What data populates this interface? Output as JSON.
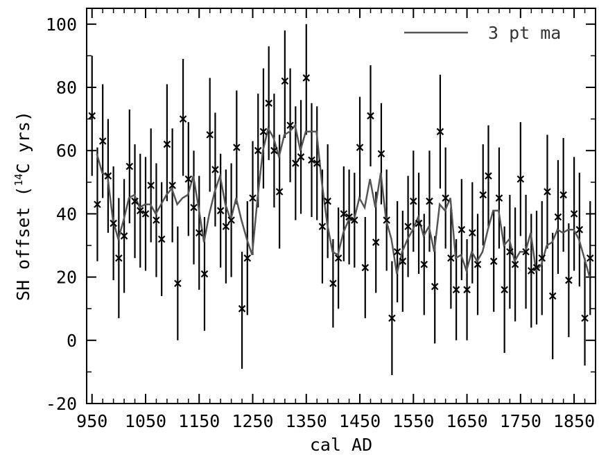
{
  "chart_data": {
    "type": "scatter",
    "xlabel": "cal AD",
    "ylabel_main": "SH offset (",
    "ylabel_sup": "14",
    "ylabel_tail": "C yrs)",
    "xlim": [
      940,
      1890
    ],
    "ylim": [
      -20,
      105
    ],
    "x_ticks": [
      "950",
      "1050",
      "1150",
      "1250",
      "1350",
      "1450",
      "1550",
      "1650",
      "1750",
      "1850"
    ],
    "x_tick_values": [
      950,
      1050,
      1150,
      1250,
      1350,
      1450,
      1550,
      1650,
      1750,
      1850
    ],
    "y_ticks": [
      "-20",
      "0",
      "20",
      "40",
      "60",
      "80",
      "100"
    ],
    "y_tick_values": [
      -20,
      0,
      20,
      40,
      60,
      80,
      100
    ],
    "grid": false,
    "legend_position": "top-right",
    "colors": {
      "points": "#000000",
      "ma_line": "#555555",
      "axes": "#000000"
    },
    "series": [
      {
        "name": "3 pt ma",
        "kind": "line",
        "x": [
          959,
          969,
          979,
          989,
          999,
          1009,
          1019,
          1029,
          1039,
          1049,
          1059,
          1069,
          1079,
          1089,
          1099,
          1109,
          1119,
          1129,
          1139,
          1149,
          1159,
          1169,
          1179,
          1189,
          1199,
          1209,
          1219,
          1229,
          1239,
          1249,
          1259,
          1269,
          1279,
          1289,
          1299,
          1309,
          1319,
          1329,
          1339,
          1349,
          1359,
          1369,
          1379,
          1389,
          1399,
          1409,
          1419,
          1429,
          1439,
          1449,
          1459,
          1469,
          1479,
          1489,
          1499,
          1509,
          1519,
          1529,
          1539,
          1549,
          1559,
          1569,
          1579,
          1589,
          1599,
          1609,
          1619,
          1629,
          1639,
          1649,
          1659,
          1669,
          1679,
          1689,
          1699,
          1709,
          1719,
          1729,
          1739,
          1749,
          1759,
          1769,
          1779,
          1789,
          1799,
          1809,
          1819,
          1829,
          1839,
          1849,
          1859,
          1869,
          1879
        ],
        "values": [
          59,
          53,
          52,
          38,
          32,
          38,
          45,
          46,
          42,
          43,
          43,
          40,
          43,
          46,
          48,
          43,
          45,
          46,
          52,
          42,
          31,
          40,
          47,
          52,
          43,
          38,
          45,
          38,
          32,
          27,
          45,
          60,
          67,
          64,
          58,
          65,
          66,
          68,
          60,
          66,
          66,
          66,
          50,
          37,
          28,
          27,
          34,
          38,
          38,
          45,
          42,
          51,
          42,
          53,
          38,
          32,
          21,
          28,
          32,
          35,
          39,
          33,
          36,
          28,
          43,
          41,
          45,
          26,
          27,
          22,
          28,
          25,
          28,
          35,
          41,
          41,
          30,
          32,
          25,
          28,
          28,
          34,
          22,
          24,
          30,
          31,
          35,
          34,
          35,
          35,
          32,
          26,
          20
        ]
      },
      {
        "name": "",
        "kind": "points",
        "x": [
          950,
          960,
          970,
          980,
          990,
          1000,
          1010,
          1020,
          1030,
          1040,
          1050,
          1060,
          1070,
          1080,
          1090,
          1100,
          1110,
          1120,
          1130,
          1140,
          1150,
          1160,
          1170,
          1180,
          1190,
          1200,
          1210,
          1220,
          1230,
          1240,
          1250,
          1260,
          1270,
          1280,
          1290,
          1300,
          1310,
          1320,
          1330,
          1340,
          1350,
          1360,
          1370,
          1380,
          1390,
          1400,
          1410,
          1420,
          1430,
          1440,
          1450,
          1460,
          1470,
          1480,
          1490,
          1500,
          1510,
          1520,
          1530,
          1540,
          1550,
          1560,
          1570,
          1580,
          1590,
          1600,
          1610,
          1620,
          1630,
          1640,
          1650,
          1660,
          1670,
          1680,
          1690,
          1700,
          1710,
          1720,
          1730,
          1740,
          1750,
          1760,
          1770,
          1780,
          1790,
          1800,
          1810,
          1820,
          1830,
          1840,
          1850,
          1860,
          1870,
          1880
        ],
        "values": [
          71,
          43,
          63,
          52,
          37,
          26,
          33,
          55,
          44,
          41,
          40,
          49,
          38,
          32,
          62,
          49,
          18,
          70,
          51,
          42,
          34,
          21,
          65,
          54,
          41,
          36,
          38,
          61,
          10,
          26,
          45,
          60,
          66,
          75,
          60,
          47,
          82,
          68,
          56,
          58,
          83,
          57,
          56,
          36,
          44,
          18,
          26,
          40,
          39,
          38,
          61,
          23,
          71,
          31,
          59,
          38,
          7,
          28,
          25,
          36,
          44,
          37,
          24,
          44,
          17,
          66,
          45,
          26,
          16,
          35,
          16,
          34,
          24,
          46,
          52,
          25,
          45,
          16,
          28,
          24,
          51,
          28,
          22,
          23,
          26,
          47,
          14,
          39,
          46,
          19,
          40,
          35,
          7,
          26
        ],
        "err_low": [
          52,
          25,
          45,
          34,
          19,
          7,
          15,
          37,
          26,
          23,
          22,
          31,
          20,
          14,
          44,
          31,
          0,
          52,
          33,
          24,
          16,
          3,
          47,
          36,
          23,
          18,
          20,
          43,
          -9,
          8,
          27,
          42,
          48,
          57,
          42,
          29,
          64,
          50,
          38,
          40,
          65,
          39,
          38,
          18,
          26,
          4,
          10,
          25,
          24,
          23,
          45,
          7,
          55,
          15,
          43,
          22,
          -11,
          12,
          9,
          20,
          28,
          21,
          8,
          28,
          -1,
          48,
          29,
          10,
          0,
          19,
          0,
          18,
          8,
          30,
          36,
          9,
          29,
          -4,
          10,
          6,
          33,
          10,
          4,
          5,
          8,
          29,
          -6,
          21,
          28,
          1,
          22,
          17,
          -8,
          8
        ],
        "err_high": [
          90,
          61,
          81,
          70,
          55,
          45,
          51,
          73,
          62,
          59,
          58,
          67,
          56,
          50,
          81,
          67,
          36,
          89,
          69,
          60,
          52,
          39,
          83,
          72,
          59,
          54,
          56,
          79,
          28,
          44,
          63,
          78,
          86,
          93,
          78,
          65,
          98,
          86,
          74,
          76,
          100,
          75,
          74,
          54,
          62,
          32,
          42,
          55,
          54,
          53,
          77,
          39,
          87,
          47,
          75,
          54,
          25,
          44,
          41,
          52,
          60,
          53,
          40,
          60,
          33,
          84,
          61,
          42,
          32,
          51,
          32,
          50,
          40,
          62,
          68,
          41,
          61,
          36,
          46,
          42,
          69,
          46,
          40,
          41,
          44,
          65,
          34,
          57,
          64,
          37,
          58,
          53,
          26,
          44
        ]
      }
    ]
  }
}
